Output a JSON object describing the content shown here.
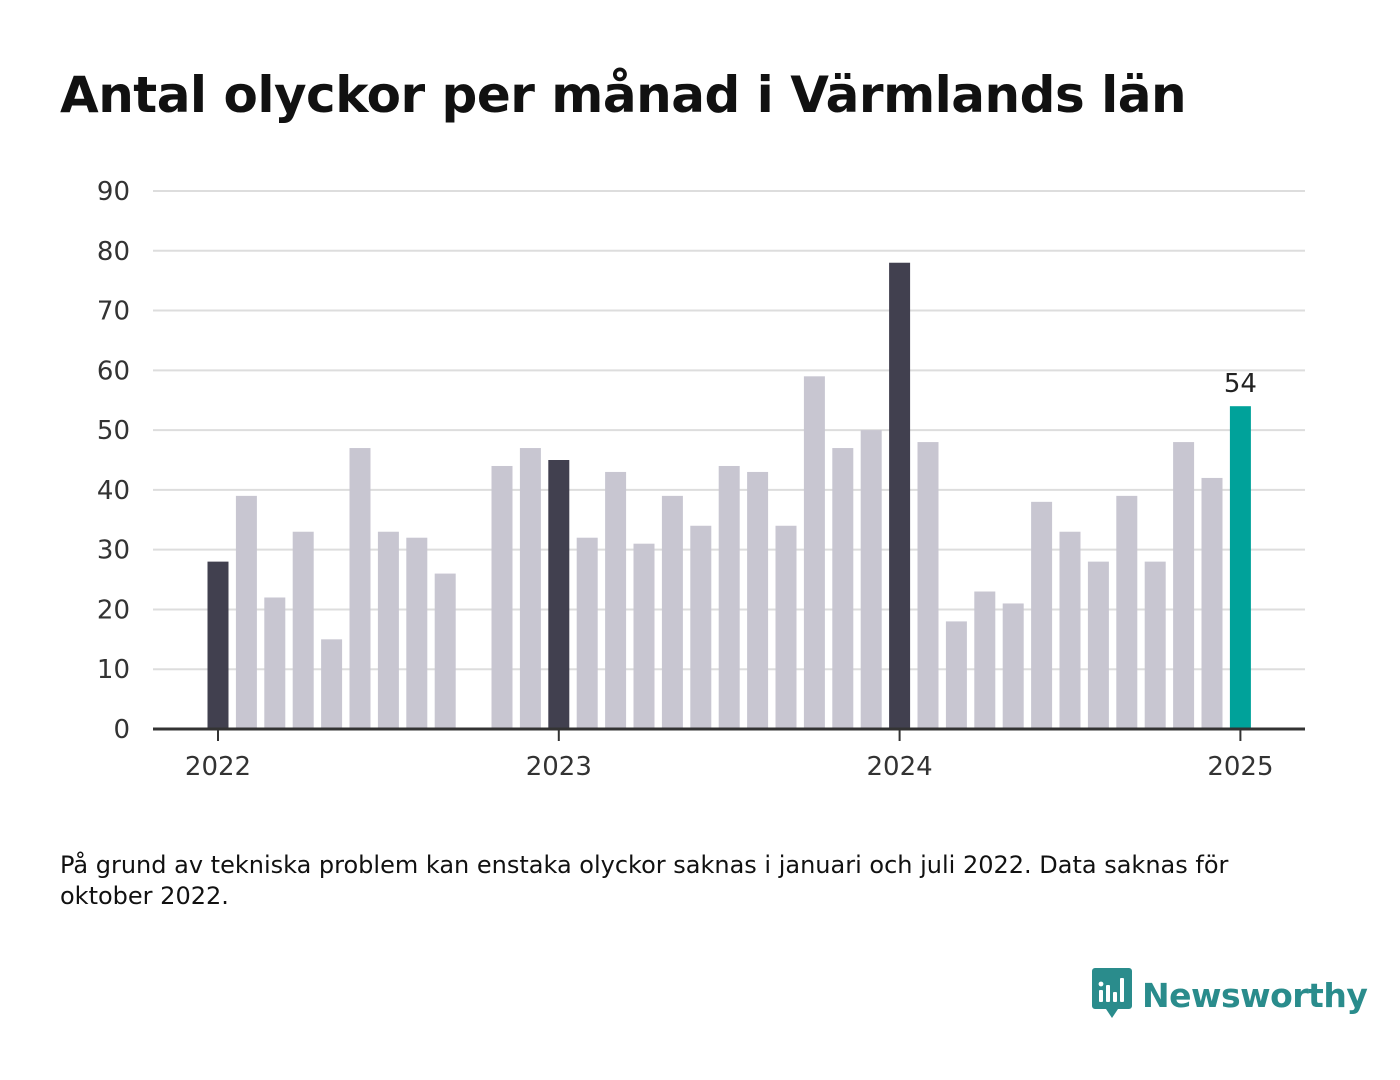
{
  "title": "Antal olyckor per månad i Värmlands län",
  "footnote": "På grund av tekniska problem kan enstaka olyckor saknas i januari och juli 2022. Data saknas för oktober 2022.",
  "brand": {
    "name": "Newsworthy",
    "icon": "newsworthy-logo-icon"
  },
  "colors": {
    "january_bar": "#41404f",
    "regular_bar": "#c8c6d1",
    "latest_bar": "#00a29a",
    "grid": "#dddddd",
    "axis": "#333333",
    "brand": "#2a8c8c"
  },
  "chart_data": {
    "type": "bar",
    "title": "Antal olyckor per månad i Värmlands län",
    "xlabel": "",
    "ylabel": "",
    "ylim": [
      0,
      90
    ],
    "yticks": [
      0,
      10,
      20,
      30,
      40,
      50,
      60,
      70,
      80,
      90
    ],
    "xticks": [
      "2022",
      "2023",
      "2024",
      "2025"
    ],
    "grid": true,
    "legend": "none",
    "categories": [
      "2022-01",
      "2022-02",
      "2022-03",
      "2022-04",
      "2022-05",
      "2022-06",
      "2022-07",
      "2022-08",
      "2022-09",
      "2022-10",
      "2022-11",
      "2022-12",
      "2023-01",
      "2023-02",
      "2023-03",
      "2023-04",
      "2023-05",
      "2023-06",
      "2023-07",
      "2023-08",
      "2023-09",
      "2023-10",
      "2023-11",
      "2023-12",
      "2024-01",
      "2024-02",
      "2024-03",
      "2024-04",
      "2024-05",
      "2024-06",
      "2024-07",
      "2024-08",
      "2024-09",
      "2024-10",
      "2024-11",
      "2024-12",
      "2025-01"
    ],
    "values": [
      28,
      39,
      22,
      33,
      15,
      47,
      33,
      32,
      26,
      null,
      44,
      47,
      45,
      32,
      43,
      31,
      39,
      34,
      44,
      43,
      34,
      59,
      47,
      50,
      78,
      48,
      18,
      23,
      21,
      38,
      33,
      28,
      39,
      28,
      48,
      42,
      54
    ],
    "annotations": [
      {
        "category": "2025-01",
        "text": "54"
      }
    ]
  }
}
